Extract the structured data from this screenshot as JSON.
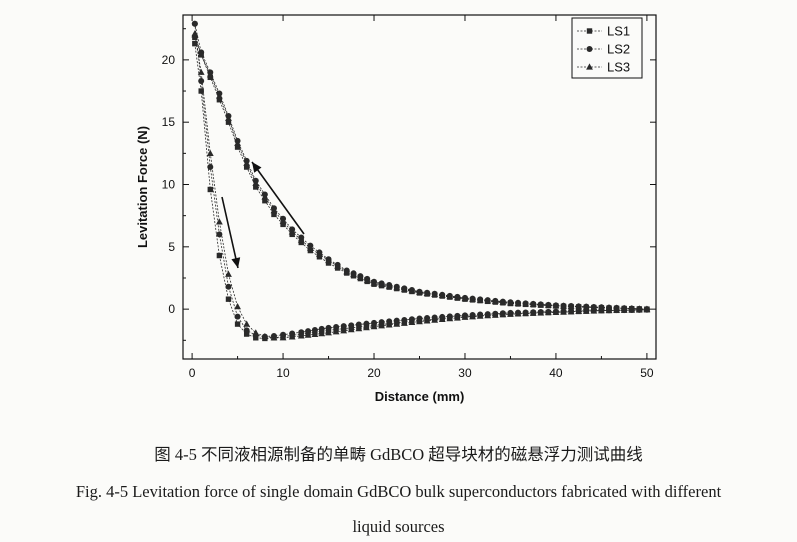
{
  "chart_data": {
    "type": "line",
    "title": "",
    "xlabel": "Distance (mm)",
    "ylabel": "Levitation Force (N)",
    "xlim": [
      -1,
      51
    ],
    "ylim": [
      -4,
      23.6
    ],
    "xticks": [
      0,
      10,
      20,
      30,
      40,
      50
    ],
    "yticks": [
      0,
      5,
      10,
      15,
      20
    ],
    "grid": false,
    "legend_position": "top-right",
    "series": [
      {
        "name": "LS1",
        "marker": "square",
        "approach": {
          "x": [
            0.3,
            1,
            2,
            3,
            4,
            5,
            6,
            7,
            8,
            9,
            10,
            12,
            15,
            20,
            25,
            30,
            35,
            40,
            45,
            50
          ],
          "y": [
            21.3,
            17.5,
            9.6,
            4.3,
            0.8,
            -1.2,
            -2.0,
            -2.3,
            -2.35,
            -2.3,
            -2.2,
            -2.0,
            -1.7,
            -1.3,
            -0.9,
            -0.6,
            -0.4,
            -0.25,
            -0.12,
            -0.05
          ]
        },
        "retract": {
          "x": [
            50,
            45,
            40,
            35,
            30,
            25,
            20,
            17,
            15,
            13,
            11,
            9,
            7,
            5,
            4,
            3,
            2,
            1,
            0.3
          ],
          "y": [
            0,
            0.1,
            0.25,
            0.45,
            0.8,
            1.3,
            2.0,
            2.9,
            3.7,
            4.7,
            6.0,
            7.6,
            9.8,
            13.0,
            15.0,
            16.8,
            18.6,
            20.4,
            21.8
          ]
        }
      },
      {
        "name": "LS2",
        "marker": "circle",
        "approach": {
          "x": [
            0.3,
            1,
            2,
            3,
            4,
            5,
            6,
            7,
            8,
            9,
            10,
            12,
            15,
            20,
            25,
            30,
            35,
            40,
            45,
            50
          ],
          "y": [
            22.9,
            18.3,
            11.4,
            6.0,
            1.8,
            -0.6,
            -1.7,
            -2.1,
            -2.2,
            -2.15,
            -2.05,
            -1.85,
            -1.5,
            -1.1,
            -0.75,
            -0.5,
            -0.3,
            -0.2,
            -0.1,
            -0.05
          ]
        },
        "retract": {
          "x": [
            50,
            45,
            40,
            35,
            30,
            25,
            20,
            17,
            15,
            13,
            11,
            9,
            7,
            5,
            4,
            3,
            2,
            1,
            0.3
          ],
          "y": [
            0,
            0.15,
            0.3,
            0.55,
            0.9,
            1.4,
            2.2,
            3.1,
            4.0,
            5.1,
            6.4,
            8.1,
            10.3,
            13.5,
            15.5,
            17.3,
            19.0,
            20.6,
            22.9
          ]
        }
      },
      {
        "name": "LS3",
        "marker": "triangle",
        "approach": {
          "x": [
            0.3,
            1,
            2,
            3,
            4,
            5,
            6,
            7,
            8,
            9,
            10,
            12,
            15,
            20,
            25,
            30,
            35,
            40,
            45,
            50
          ],
          "y": [
            22.0,
            19.0,
            12.5,
            7.0,
            2.8,
            0.2,
            -1.2,
            -1.9,
            -2.2,
            -2.3,
            -2.3,
            -2.15,
            -1.9,
            -1.4,
            -1.0,
            -0.65,
            -0.4,
            -0.25,
            -0.12,
            -0.05
          ]
        },
        "retract": {
          "x": [
            50,
            45,
            40,
            35,
            30,
            25,
            20,
            17,
            15,
            13,
            11,
            9,
            7,
            5,
            4,
            3,
            2,
            1,
            0.3
          ],
          "y": [
            0,
            0.12,
            0.28,
            0.5,
            0.85,
            1.35,
            2.1,
            3.0,
            3.9,
            4.9,
            6.2,
            7.9,
            10.1,
            13.3,
            15.3,
            17.1,
            18.8,
            20.4,
            22.1
          ]
        }
      }
    ]
  },
  "captions": {
    "cn": "图 4-5  不同液相源制备的单畴 GdBCO 超导块材的磁悬浮力测试曲线",
    "en_line1": "Fig. 4-5 Levitation force of single domain GdBCO bulk superconductors fabricated with different",
    "en_line2": "liquid sources"
  },
  "colors": {
    "series": "#2a2a2a",
    "axis": "#111111",
    "background": "#fbfbf9"
  }
}
